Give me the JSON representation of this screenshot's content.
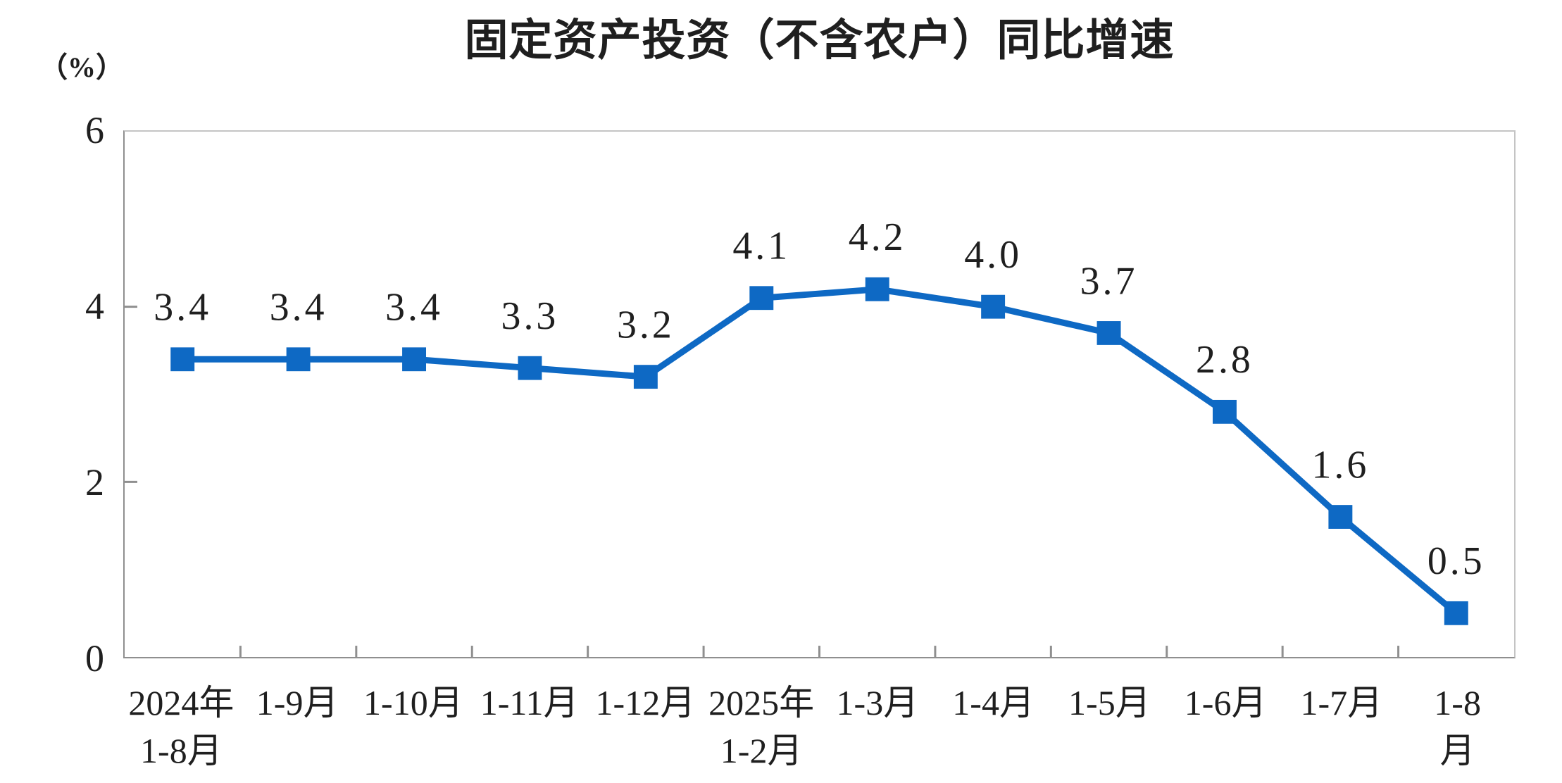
{
  "chart_data": {
    "type": "line",
    "title": "固定资产投资（不含农户）同比增速",
    "ylabel": "（%）",
    "xlabel": "",
    "categories": [
      "2024年\n1-8月",
      "1-9月",
      "1-10月",
      "1-11月",
      "1-12月",
      "2025年\n1-2月",
      "1-3月",
      "1-4月",
      "1-5月",
      "1-6月",
      "1-7月",
      "1-8月"
    ],
    "values": [
      3.4,
      3.4,
      3.4,
      3.3,
      3.2,
      4.1,
      4.2,
      4.0,
      3.7,
      2.8,
      1.6,
      0.5
    ],
    "point_labels": [
      "3.4",
      "3.4",
      "3.4",
      "3.3",
      "3.2",
      "4.1",
      "4.2",
      "4.0",
      "3.7",
      "2.8",
      "1.6",
      "0.5"
    ],
    "ylim": [
      0,
      6
    ],
    "y_ticks": [
      6,
      4,
      2,
      0
    ],
    "grid": false,
    "legend": false,
    "marker_shape": "square",
    "data_labels_visible": true
  },
  "colors": {
    "line": "#0e69c4",
    "plot_border": "#c4c4c4",
    "axis": "#8f8f8f",
    "text": "#1f1f1f",
    "background": "#ffffff"
  }
}
